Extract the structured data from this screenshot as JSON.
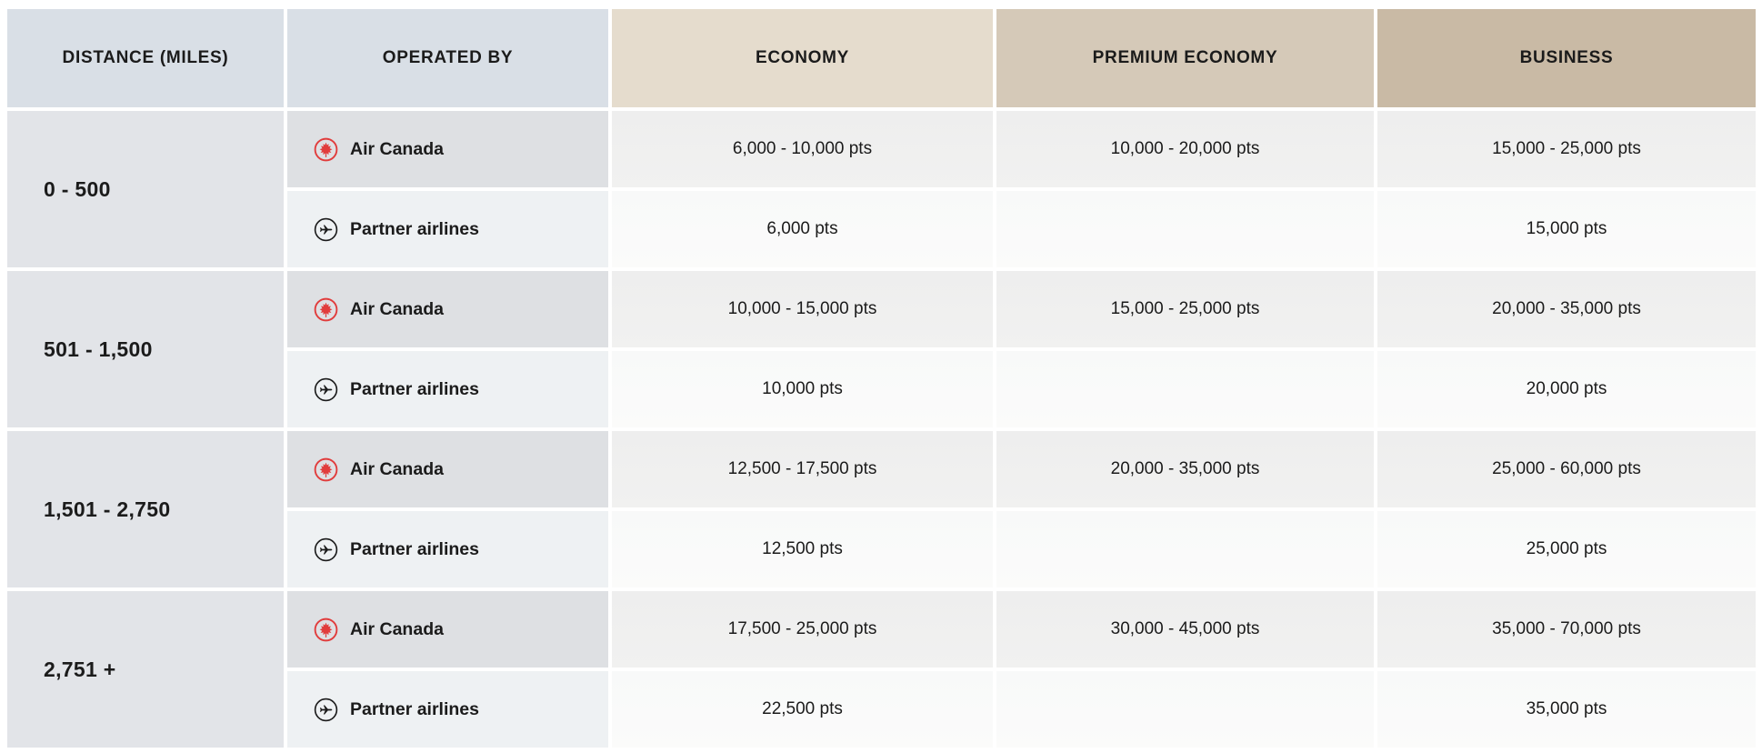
{
  "table": {
    "columns": [
      {
        "label": "DISTANCE (MILES)"
      },
      {
        "label": "OPERATED BY"
      },
      {
        "label": "ECONOMY"
      },
      {
        "label": "PREMIUM ECONOMY"
      },
      {
        "label": "BUSINESS"
      }
    ],
    "groups": [
      {
        "distance": "0 - 500",
        "rows": [
          {
            "carrier": "ac",
            "icon": "air-canada-roundel-icon",
            "operated_by": "Air Canada",
            "economy": "6,000 - 10,000 pts",
            "premium_economy": "10,000 - 20,000 pts",
            "business": "15,000 - 25,000 pts"
          },
          {
            "carrier": "partner",
            "icon": "partner-airplane-icon",
            "operated_by": "Partner airlines",
            "economy": "6,000 pts",
            "premium_economy": "",
            "business": "15,000 pts"
          }
        ]
      },
      {
        "distance": "501 - 1,500",
        "rows": [
          {
            "carrier": "ac",
            "icon": "air-canada-roundel-icon",
            "operated_by": "Air Canada",
            "economy": "10,000 - 15,000 pts",
            "premium_economy": "15,000 - 25,000 pts",
            "business": "20,000 - 35,000 pts"
          },
          {
            "carrier": "partner",
            "icon": "partner-airplane-icon",
            "operated_by": "Partner airlines",
            "economy": "10,000 pts",
            "premium_economy": "",
            "business": "20,000 pts"
          }
        ]
      },
      {
        "distance": "1,501 - 2,750",
        "rows": [
          {
            "carrier": "ac",
            "icon": "air-canada-roundel-icon",
            "operated_by": "Air Canada",
            "economy": "12,500 - 17,500 pts",
            "premium_economy": "20,000 - 35,000 pts",
            "business": "25,000 - 60,000 pts"
          },
          {
            "carrier": "partner",
            "icon": "partner-airplane-icon",
            "operated_by": "Partner airlines",
            "economy": "12,500 pts",
            "premium_economy": "",
            "business": "25,000 pts"
          }
        ]
      },
      {
        "distance": "2,751 +",
        "rows": [
          {
            "carrier": "ac",
            "icon": "air-canada-roundel-icon",
            "operated_by": "Air Canada",
            "economy": "17,500 - 25,000 pts",
            "premium_economy": "30,000 - 45,000 pts",
            "business": "35,000 - 70,000 pts"
          },
          {
            "carrier": "partner",
            "icon": "partner-airplane-icon",
            "operated_by": "Partner airlines",
            "economy": "22,500 pts",
            "premium_economy": "",
            "business": "35,000 pts"
          }
        ]
      }
    ],
    "colors": {
      "header_gray": "#d9dfe6",
      "header_economy": "#e5dccd",
      "header_premium_economy": "#d5c9b8",
      "header_business": "#c9baa5",
      "distance_cell": "#e2e4e8",
      "operated_air_canada_cell": "#dee0e3",
      "operated_partner_cell": "#eef1f3",
      "value_air_canada_cell": "#efefef",
      "value_partner_cell": "#fafafa",
      "air_canada_red": "#e13c3c",
      "text": "#1b1b1b"
    }
  }
}
